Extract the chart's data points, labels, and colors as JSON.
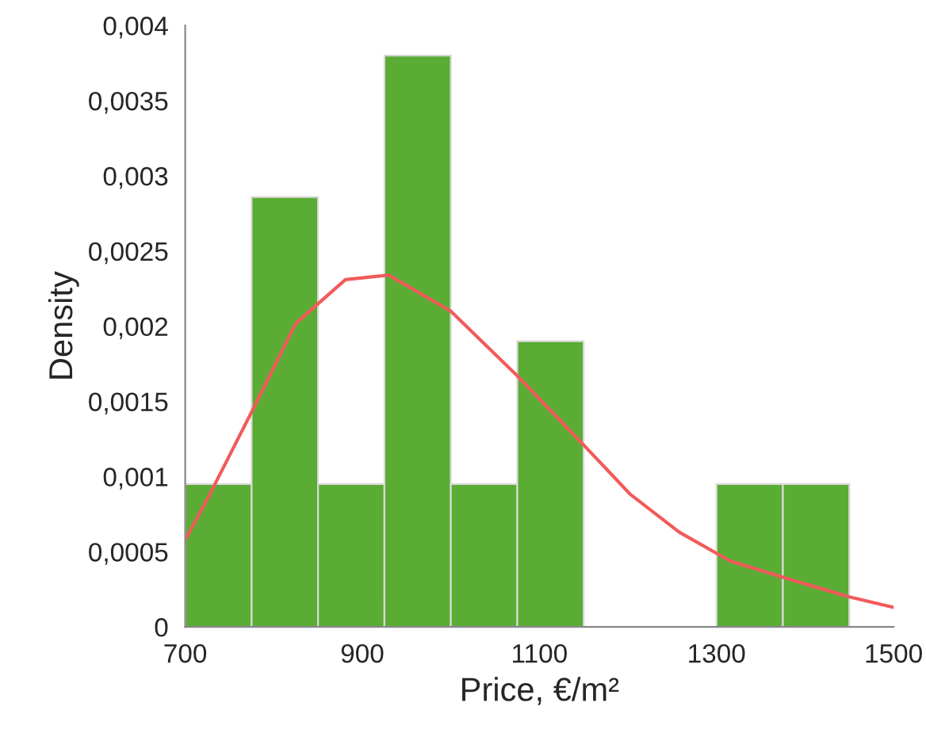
{
  "chart_data": {
    "type": "histogram",
    "xlabel": "Price, €/m²",
    "ylabel": "Density",
    "bins": [
      700,
      775,
      850,
      925,
      1000,
      1075,
      1150,
      1225,
      1300,
      1375,
      1450
    ],
    "values": [
      0.00095,
      0.00286,
      0.00095,
      0.0038,
      0.00095,
      0.0019,
      0,
      0,
      0.00095,
      0.00095
    ],
    "color": "#5aac34",
    "series": [
      {
        "type": "line",
        "color": "#f25a5a",
        "x": [
          700,
          725,
          775,
          825,
          881,
          930,
          1000,
          1075,
          1150,
          1203,
          1258,
          1315,
          1375,
          1450,
          1500
        ],
        "values": [
          0.00058,
          0.00085,
          0.00143,
          0.00202,
          0.00231,
          0.00234,
          0.0021,
          0.00167,
          0.00121,
          0.00088,
          0.00063,
          0.00044,
          0.00033,
          0.0002,
          0.00013
        ]
      }
    ],
    "xlim": [
      700,
      1500
    ],
    "xticks": [
      700,
      900,
      1100,
      1300,
      1500
    ],
    "ylim": [
      0,
      0.004
    ],
    "yticks": [
      {
        "value": 0,
        "label": "0"
      },
      {
        "value": 0.0005,
        "label": "0,0005"
      },
      {
        "value": 0.001,
        "label": "0,001"
      },
      {
        "value": 0.0015,
        "label": "0,0015"
      },
      {
        "value": 0.002,
        "label": "0,002"
      },
      {
        "value": 0.0025,
        "label": "0,0025"
      },
      {
        "value": 0.003,
        "label": "0,003"
      },
      {
        "value": 0.0035,
        "label": "0,0035"
      },
      {
        "value": 0.004,
        "label": "0,004"
      }
    ],
    "grid": false,
    "legend": false
  }
}
